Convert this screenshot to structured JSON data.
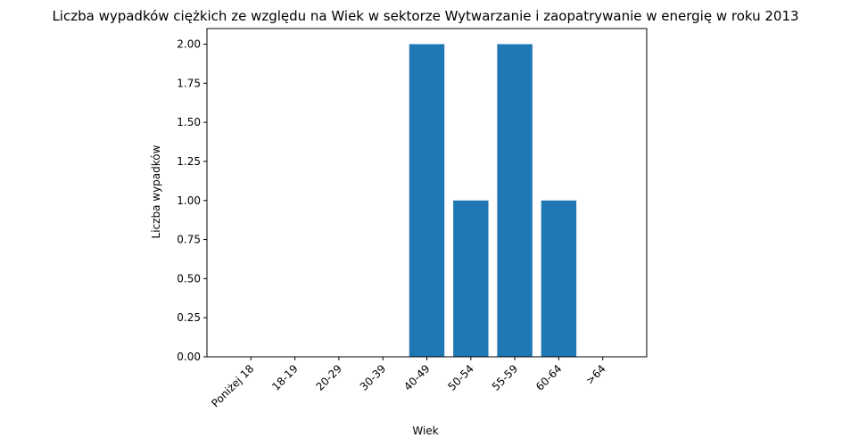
{
  "chart_data": {
    "type": "bar",
    "title": "Liczba wypadków ciężkich ze względu na Wiek w sektorze Wytwarzanie i zaopatrywanie w energię w roku 2013",
    "xlabel": "Wiek",
    "ylabel": "Liczba wypadków",
    "categories": [
      "Poniżej 18",
      "18-19",
      "20-29",
      "30-39",
      "40-49",
      "50-54",
      "55-59",
      "60-64",
      ">64"
    ],
    "values": [
      0,
      0,
      0,
      0,
      2,
      1,
      2,
      1,
      0
    ],
    "ylim": [
      0,
      2.1
    ],
    "yticks": [
      "0.00",
      "0.25",
      "0.50",
      "0.75",
      "1.00",
      "1.25",
      "1.50",
      "1.75",
      "2.00"
    ],
    "bar_color": "#1f77b4",
    "grid": false
  }
}
